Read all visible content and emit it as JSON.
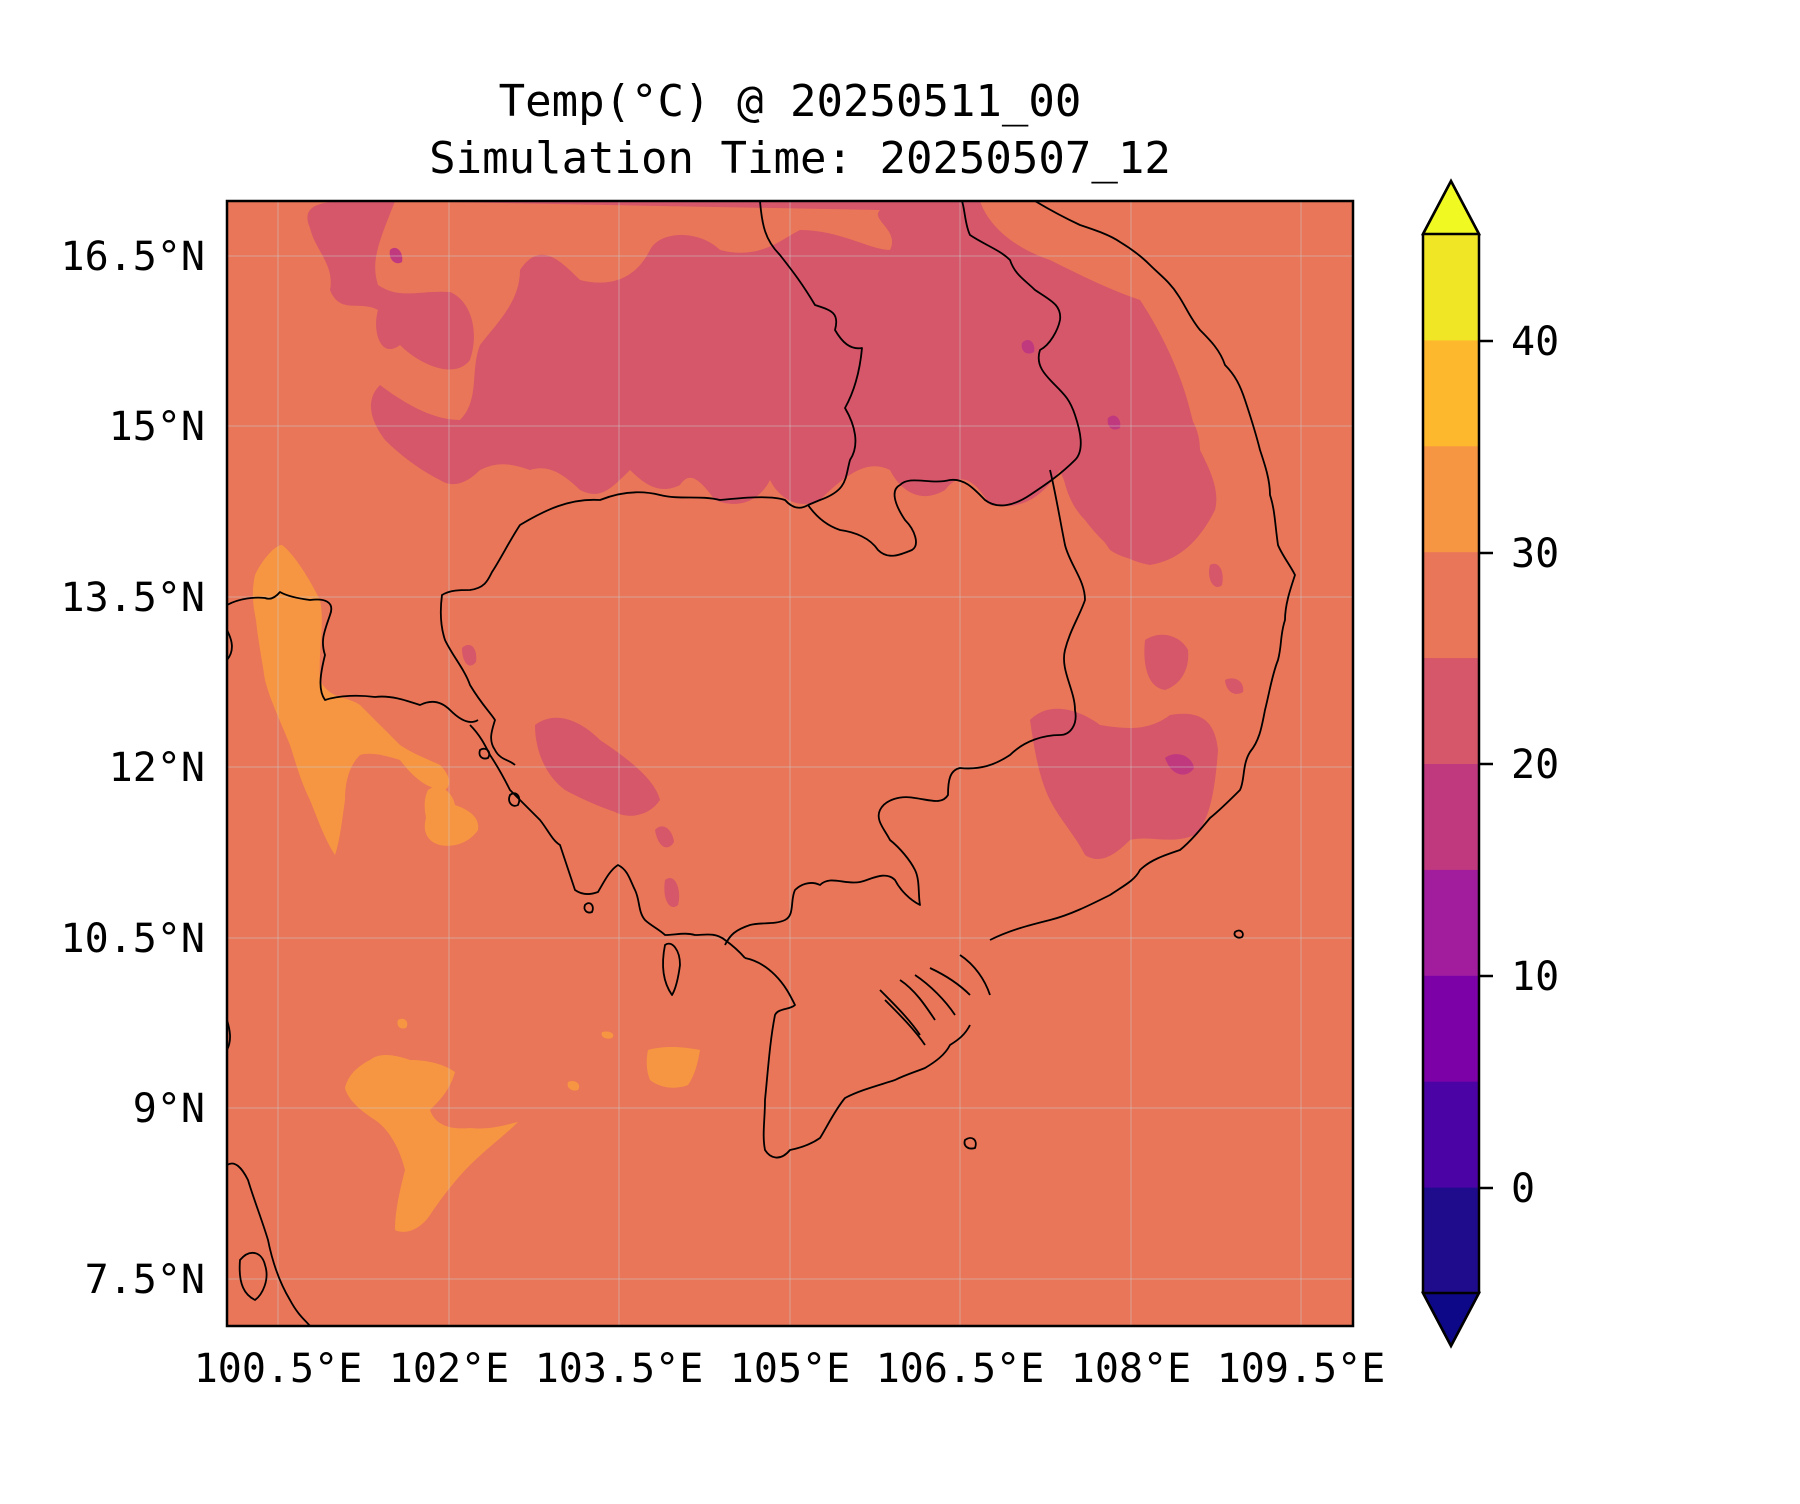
{
  "title": {
    "line1": "Temp(°C) @ 20250511_00",
    "line2": "Simulation Time: 20250507_12"
  },
  "map": {
    "region": "Indochina (Cambodia, southern Vietnam, southern Laos, eastern Thailand)",
    "variable": "Temperature",
    "units": "°C",
    "lon_range": [
      100.4,
      110.3
    ],
    "lat_range": [
      7.1,
      17.0
    ],
    "lon_ticks": [
      "100.5°E",
      "102°E",
      "103.5°E",
      "105°E",
      "106.5°E",
      "108°E",
      "109.5°E"
    ],
    "lat_ticks": [
      "16.5°N",
      "15°N",
      "13.5°N",
      "12°N",
      "10.5°N",
      "9°N",
      "7.5°N"
    ],
    "background_class": "25–30 °C"
  },
  "colorbar": {
    "ticks": [
      "40",
      "30",
      "20",
      "10",
      "0"
    ],
    "levels": [
      -5,
      0,
      5,
      10,
      15,
      20,
      25,
      30,
      35,
      40,
      45
    ],
    "colors": [
      "#1f0c8d",
      "#4c03a5",
      "#7c02a8",
      "#a11d9d",
      "#c0397f",
      "#d6566a",
      "#e97658",
      "#f79642",
      "#feb82d",
      "#f1e626"
    ],
    "extend": "both",
    "under_color": "#0d0887",
    "over_color": "#f0f921"
  }
}
